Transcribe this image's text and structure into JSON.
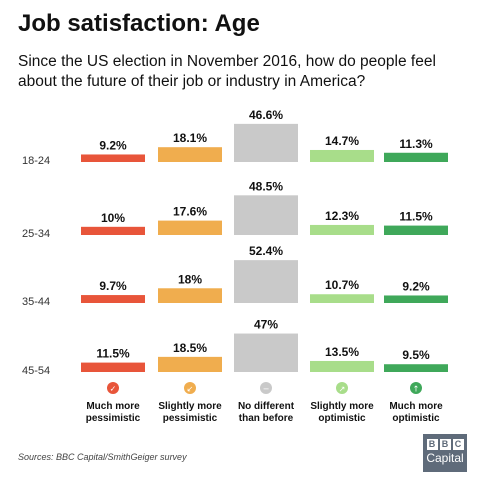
{
  "header": {
    "title": "Job satisfaction: Age",
    "subtitle": "Since the US election in November 2016, how do people feel about the future of their job or industry in America?"
  },
  "footer": {
    "source": "Sources: BBC Capital/SmithGeiger survey"
  },
  "logo": {
    "brand": [
      "B",
      "B",
      "C"
    ],
    "product": "Capital"
  },
  "chart_data": {
    "type": "bar",
    "categories": [
      "18-24",
      "25-34",
      "35-44",
      "45-54"
    ],
    "series": [
      {
        "name": "Much more pessimistic",
        "color": "#e8553a",
        "icon": "much-pessimistic-icon",
        "glyph": "✓",
        "values": [
          9.2,
          10,
          9.7,
          11.5
        ],
        "labels": [
          "9.2%",
          "10%",
          "9.7%",
          "11.5%"
        ]
      },
      {
        "name": "Slightly more pessimistic",
        "color": "#f0ad4e",
        "icon": "slightly-pessimistic-icon",
        "glyph": "↙",
        "values": [
          18.1,
          17.6,
          18,
          18.5
        ],
        "labels": [
          "18.1%",
          "17.6%",
          "18%",
          "18.5%"
        ]
      },
      {
        "name": "No different than before",
        "color": "#c9c9c9",
        "icon": "no-different-icon",
        "glyph": "−",
        "values": [
          46.6,
          48.5,
          52.4,
          47
        ],
        "labels": [
          "46.6%",
          "48.5%",
          "52.4%",
          "47%"
        ]
      },
      {
        "name": "Slightly more optimistic",
        "color": "#a8dd8a",
        "icon": "slightly-optimistic-icon",
        "glyph": "↗",
        "values": [
          14.7,
          12.3,
          10.7,
          13.5
        ],
        "labels": [
          "14.7%",
          "12.3%",
          "10.7%",
          "13.5%"
        ]
      },
      {
        "name": "Much more optimistic",
        "color": "#3fa85a",
        "icon": "much-optimistic-icon",
        "glyph": "↑",
        "values": [
          11.3,
          11.5,
          9.2,
          9.5
        ],
        "labels": [
          "11.3%",
          "11.5%",
          "9.2%",
          "9.5%"
        ]
      }
    ],
    "legend_lines": [
      [
        "Much more",
        "pessimistic"
      ],
      [
        "Slightly more",
        "pessimistic"
      ],
      [
        "No different",
        "than before"
      ],
      [
        "Slightly more",
        "optimistic"
      ],
      [
        "Much more",
        "optimistic"
      ]
    ],
    "ylim": [
      0,
      55
    ],
    "legend": "bottom",
    "grid": false
  }
}
